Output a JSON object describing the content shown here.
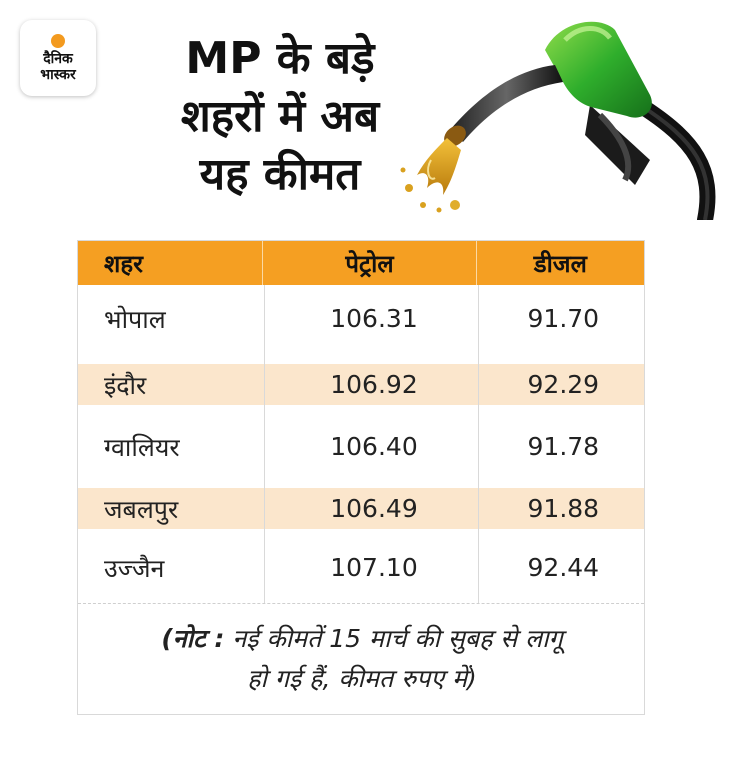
{
  "logo": {
    "line1": "दैनिक",
    "line2": "भास्कर",
    "dot_color": "#f39a1f"
  },
  "title": {
    "line1": "MP के बड़े",
    "line2": "शहरों में अब",
    "line3": "यह कीमत"
  },
  "table": {
    "header_color": "#f59f22",
    "alt_row_color": "#fbe6cc",
    "columns": [
      "शहर",
      "पेट्रोल",
      "डीजल"
    ],
    "rows": [
      {
        "city": "भोपाल",
        "petrol": "106.31",
        "diesel": "91.70"
      },
      {
        "city": "इंदौर",
        "petrol": "106.92",
        "diesel": "92.29"
      },
      {
        "city": "ग्वालियर",
        "petrol": "106.40",
        "diesel": "91.78"
      },
      {
        "city": "जबलपुर",
        "petrol": "106.49",
        "diesel": "91.88"
      },
      {
        "city": "उज्जैन",
        "petrol": "107.10",
        "diesel": "92.44"
      }
    ]
  },
  "note": {
    "label": "(नोट :",
    "line1": "नई कीमतें 15 मार्च की सुबह से लागू",
    "line2": "हो गई हैं, कीमत रुपए में)"
  },
  "icons": {
    "nozzle": "fuel-nozzle-icon"
  }
}
